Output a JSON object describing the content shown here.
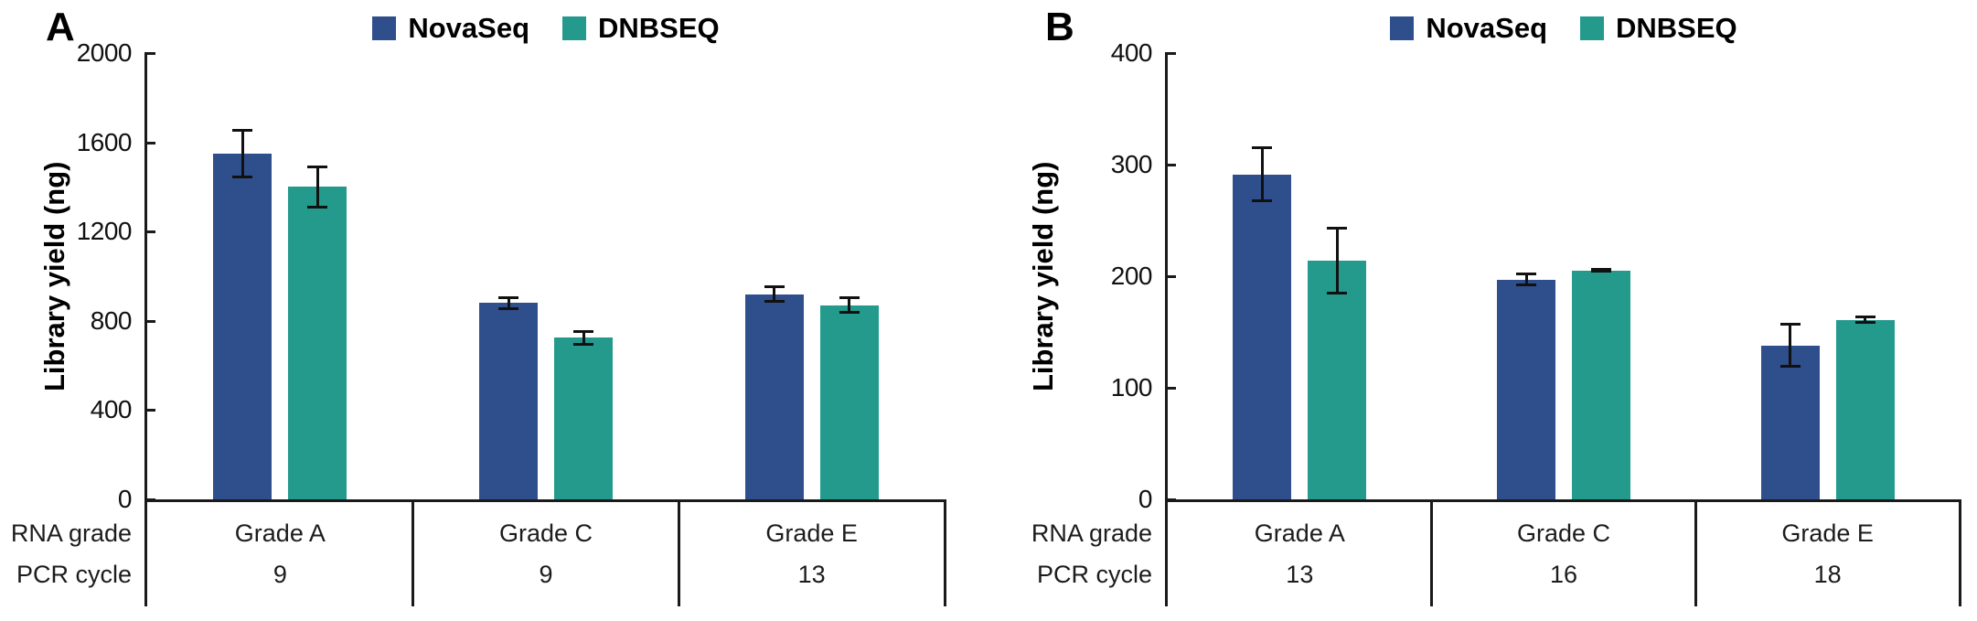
{
  "figure": {
    "background": "#ffffff",
    "error_bar_color": "#111111",
    "axis_color": "#1a1a1a",
    "series_colors": {
      "NovaSeq": "#2e4f8b",
      "DNBSEQ": "#249a8d"
    }
  },
  "chart_data": [
    {
      "panel_label": "A",
      "type": "bar",
      "title": "",
      "xlabel": "",
      "ylabel": "Library yield (ng)",
      "ylim": [
        0,
        2000
      ],
      "yticks": [
        "0",
        "400",
        "800",
        "1200",
        "1600",
        "2000"
      ],
      "ytick_values": [
        0,
        400,
        800,
        1200,
        1600,
        2000
      ],
      "grid": false,
      "legend_position": "top-center",
      "legend": [
        "NovaSeq",
        "DNBSEQ"
      ],
      "categories": [
        "Grade A",
        "Grade C",
        "Grade E"
      ],
      "row_headers": [
        "RNA grade",
        "PCR cycle"
      ],
      "pcr_cycles": [
        "9",
        "9",
        "13"
      ],
      "series": [
        {
          "name": "NovaSeq",
          "color": "#2e4f8b",
          "values": [
            1550,
            880,
            920
          ],
          "errors": [
            110,
            30,
            37
          ]
        },
        {
          "name": "DNBSEQ",
          "color": "#249a8d",
          "values": [
            1400,
            725,
            870
          ],
          "errors": [
            95,
            35,
            40
          ]
        }
      ]
    },
    {
      "panel_label": "B",
      "type": "bar",
      "title": "",
      "xlabel": "",
      "ylabel": "Library yield (ng)",
      "ylim": [
        0,
        400
      ],
      "yticks": [
        "0",
        "100",
        "200",
        "300",
        "400"
      ],
      "ytick_values": [
        0,
        100,
        200,
        300,
        400
      ],
      "grid": false,
      "legend_position": "top-center",
      "legend": [
        "NovaSeq",
        "DNBSEQ"
      ],
      "categories": [
        "Grade A",
        "Grade C",
        "Grade E"
      ],
      "row_headers": [
        "RNA grade",
        "PCR cycle"
      ],
      "pcr_cycles": [
        "13",
        "16",
        "18"
      ],
      "series": [
        {
          "name": "NovaSeq",
          "color": "#2e4f8b",
          "values": [
            291,
            197,
            138
          ],
          "errors": [
            25,
            6,
            20
          ]
        },
        {
          "name": "DNBSEQ",
          "color": "#249a8d",
          "values": [
            214,
            205,
            161
          ],
          "errors": [
            30,
            2,
            4
          ]
        }
      ]
    }
  ]
}
